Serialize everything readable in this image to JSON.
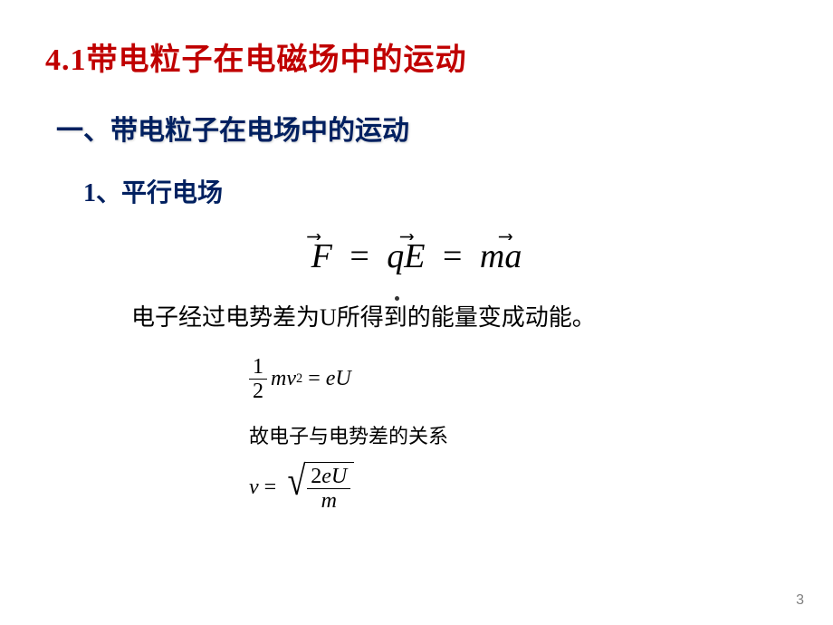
{
  "title_num": "4.1",
  "title_text": "带电粒子在电磁场中的运动",
  "heading1": "一、带电粒子在电场中的运动",
  "heading2": "1、平行电场",
  "eq_main": {
    "F": "F",
    "q": "q",
    "E": "E",
    "m": "m",
    "a": "a",
    "eq": "="
  },
  "desc1": "电子经过电势差为U所得到的能量变成动能。",
  "eq2": {
    "half_top": "1",
    "half_bot": "2",
    "m": "m",
    "v": "v",
    "sq": "2",
    "eq": "=",
    "e": "e",
    "U": "U"
  },
  "desc2": "故电子与电势差的关系",
  "eq3": {
    "v": "v",
    "eq": "=",
    "top_2": "2",
    "top_e": "e",
    "top_U": "U",
    "bot_m": "m"
  },
  "page_num": "3",
  "colors": {
    "title_color": "#c00000",
    "heading_color": "#002060",
    "text_color": "#000000",
    "page_num_color": "#808080",
    "background": "#ffffff"
  }
}
